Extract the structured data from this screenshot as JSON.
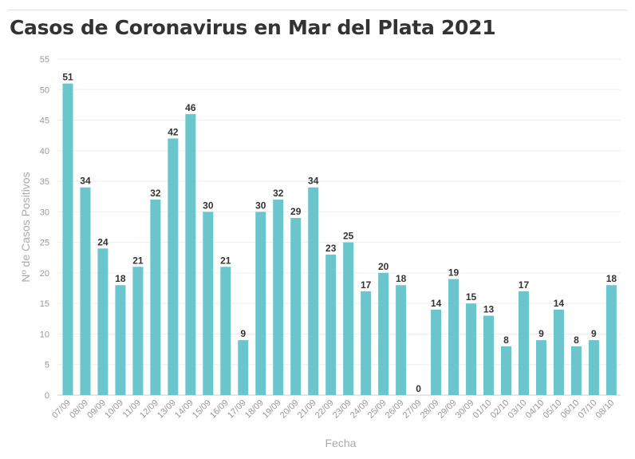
{
  "chart_data": {
    "type": "bar",
    "title": "Casos de Coronavirus en Mar del Plata 2021",
    "xlabel": "Fecha",
    "ylabel": "Nº de Casos Positivos",
    "ylim": [
      0,
      55
    ],
    "yticks": [
      0,
      5,
      10,
      15,
      20,
      25,
      30,
      35,
      40,
      45,
      50,
      55
    ],
    "grid": true,
    "color": "#6ac5cc",
    "categories": [
      "07/09",
      "08/09",
      "09/09",
      "10/09",
      "11/09",
      "12/09",
      "13/09",
      "14/09",
      "15/09",
      "16/09",
      "17/09",
      "18/09",
      "19/09",
      "20/09",
      "21/09",
      "22/09",
      "23/09",
      "24/09",
      "25/09",
      "26/09",
      "27/09",
      "28/09",
      "29/09",
      "30/09",
      "01/10",
      "02/10",
      "03/10",
      "04/10",
      "05/10",
      "06/10",
      "07/10",
      "08/10"
    ],
    "values": [
      51,
      34,
      24,
      18,
      21,
      32,
      42,
      46,
      30,
      21,
      9,
      30,
      32,
      29,
      34,
      23,
      25,
      17,
      20,
      18,
      0,
      14,
      19,
      15,
      13,
      8,
      17,
      9,
      14,
      8,
      9,
      18
    ]
  }
}
